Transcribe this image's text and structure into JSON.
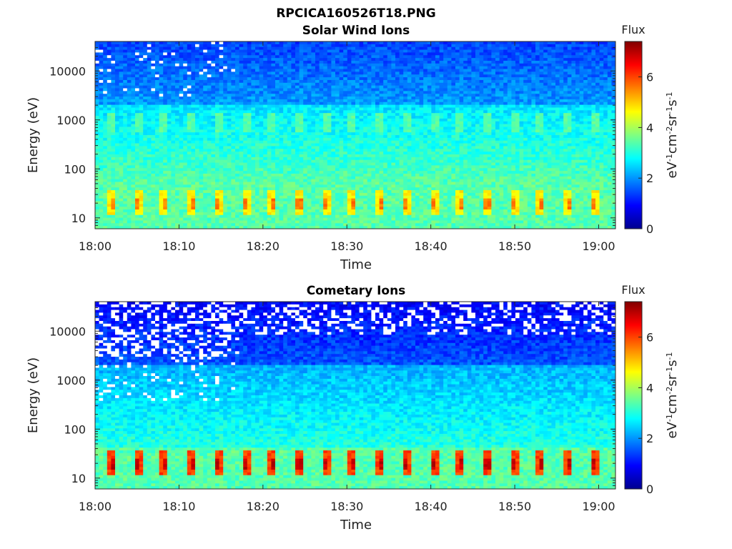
{
  "figure_title": "RPCICA160526T18.PNG",
  "colorscale": {
    "stops": [
      "#00008f",
      "#0000ff",
      "#0080ff",
      "#00ffff",
      "#80ff80",
      "#ffff00",
      "#ff8000",
      "#ff0000",
      "#800000"
    ],
    "min": 0,
    "max": 7.4
  },
  "chart_data": [
    {
      "type": "heatmap",
      "title": "Solar Wind Ions",
      "xlabel": "Time",
      "ylabel": "Energy (eV)",
      "xticks": [
        "18:00",
        "18:10",
        "18:20",
        "18:30",
        "18:40",
        "18:50",
        "19:00"
      ],
      "xlim_minutes": [
        0,
        62
      ],
      "yscale": "log",
      "yticks": [
        10,
        100,
        1000,
        10000
      ],
      "ylim": [
        6,
        40000
      ],
      "colorbar": {
        "title": "Flux",
        "label": "eV-1cm-2sr-1s-1",
        "ticks": [
          0,
          2,
          4,
          6
        ],
        "range": [
          0,
          7.4
        ]
      },
      "features": {
        "background_flux_high_energy": 1.4,
        "background_flux_mid_energy": 2.6,
        "background_flux_low_energy": 3.4,
        "pulse_period_minutes": 3.2,
        "pulse_band_1000eV_flux": 3.4,
        "pulse_band_20eV_flux": 4.7,
        "sparse_empty_bins_until_minute": 17
      }
    },
    {
      "type": "heatmap",
      "title": "Cometary Ions",
      "xlabel": "Time",
      "ylabel": "Energy (eV)",
      "xticks": [
        "18:00",
        "18:10",
        "18:20",
        "18:30",
        "18:40",
        "18:50",
        "19:00"
      ],
      "xlim_minutes": [
        0,
        62
      ],
      "yscale": "log",
      "yticks": [
        10,
        100,
        1000,
        10000
      ],
      "ylim": [
        6,
        40000
      ],
      "colorbar": {
        "title": "Flux",
        "label": "eV-1cm-2sr-1s-1",
        "ticks": [
          0,
          2,
          4,
          6
        ],
        "range": [
          0,
          7.4
        ]
      },
      "features": {
        "background_flux_high_energy": 0.9,
        "background_flux_mid_energy": 2.2,
        "background_flux_low_energy": 3.4,
        "pulse_period_minutes": 3.2,
        "pulse_band_1000eV_flux": 1.8,
        "pulse_band_20eV_flux": 6.0,
        "sparse_empty_bins_until_minute": 17
      }
    }
  ]
}
